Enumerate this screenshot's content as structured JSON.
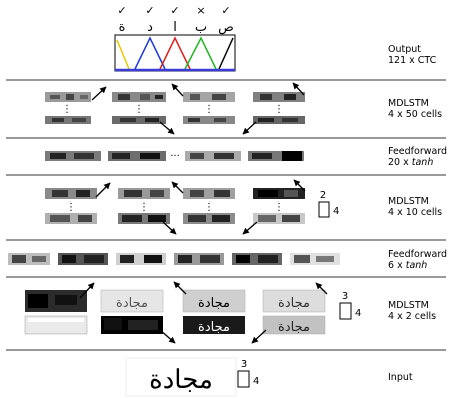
{
  "layers": [
    {
      "name": "Output",
      "detail_prefix": "121 x ",
      "detail_em": "",
      "detail_suffix": "CTC"
    },
    {
      "name": "MDLSTM",
      "detail_prefix": "4 x 50 cells",
      "detail_em": "",
      "detail_suffix": ""
    },
    {
      "name": "Feedforward",
      "detail_prefix": "20 x ",
      "detail_em": "tanh",
      "detail_suffix": ""
    },
    {
      "name": "MDLSTM",
      "detail_prefix": "4 x 10 cells",
      "detail_em": "",
      "detail_suffix": ""
    },
    {
      "name": "Feedforward",
      "detail_prefix": "6 x ",
      "detail_em": "tanh",
      "detail_suffix": ""
    },
    {
      "name": "MDLSTM",
      "detail_prefix": "4 x 2 cells",
      "detail_em": "",
      "detail_suffix": ""
    },
    {
      "name": "Input",
      "detail_prefix": "",
      "detail_em": "",
      "detail_suffix": ""
    }
  ],
  "output_marks": [
    "✓",
    "✓",
    "✓",
    "×",
    "✓"
  ],
  "output_chars": [
    "ة",
    "د",
    "ا",
    "ب",
    "ص"
  ],
  "ellipsis": "···",
  "subsample_blocks": [
    {
      "top": "2",
      "right": "4"
    },
    {
      "top": "3",
      "right": "4"
    },
    {
      "top": "3",
      "right": "4"
    }
  ],
  "input_word": "مجادة",
  "output_curve_colors": [
    "#e5c800",
    "#1f3bd6",
    "#e02020",
    "#22b422",
    "#000000"
  ],
  "baseline_color": "#3b3bd8"
}
